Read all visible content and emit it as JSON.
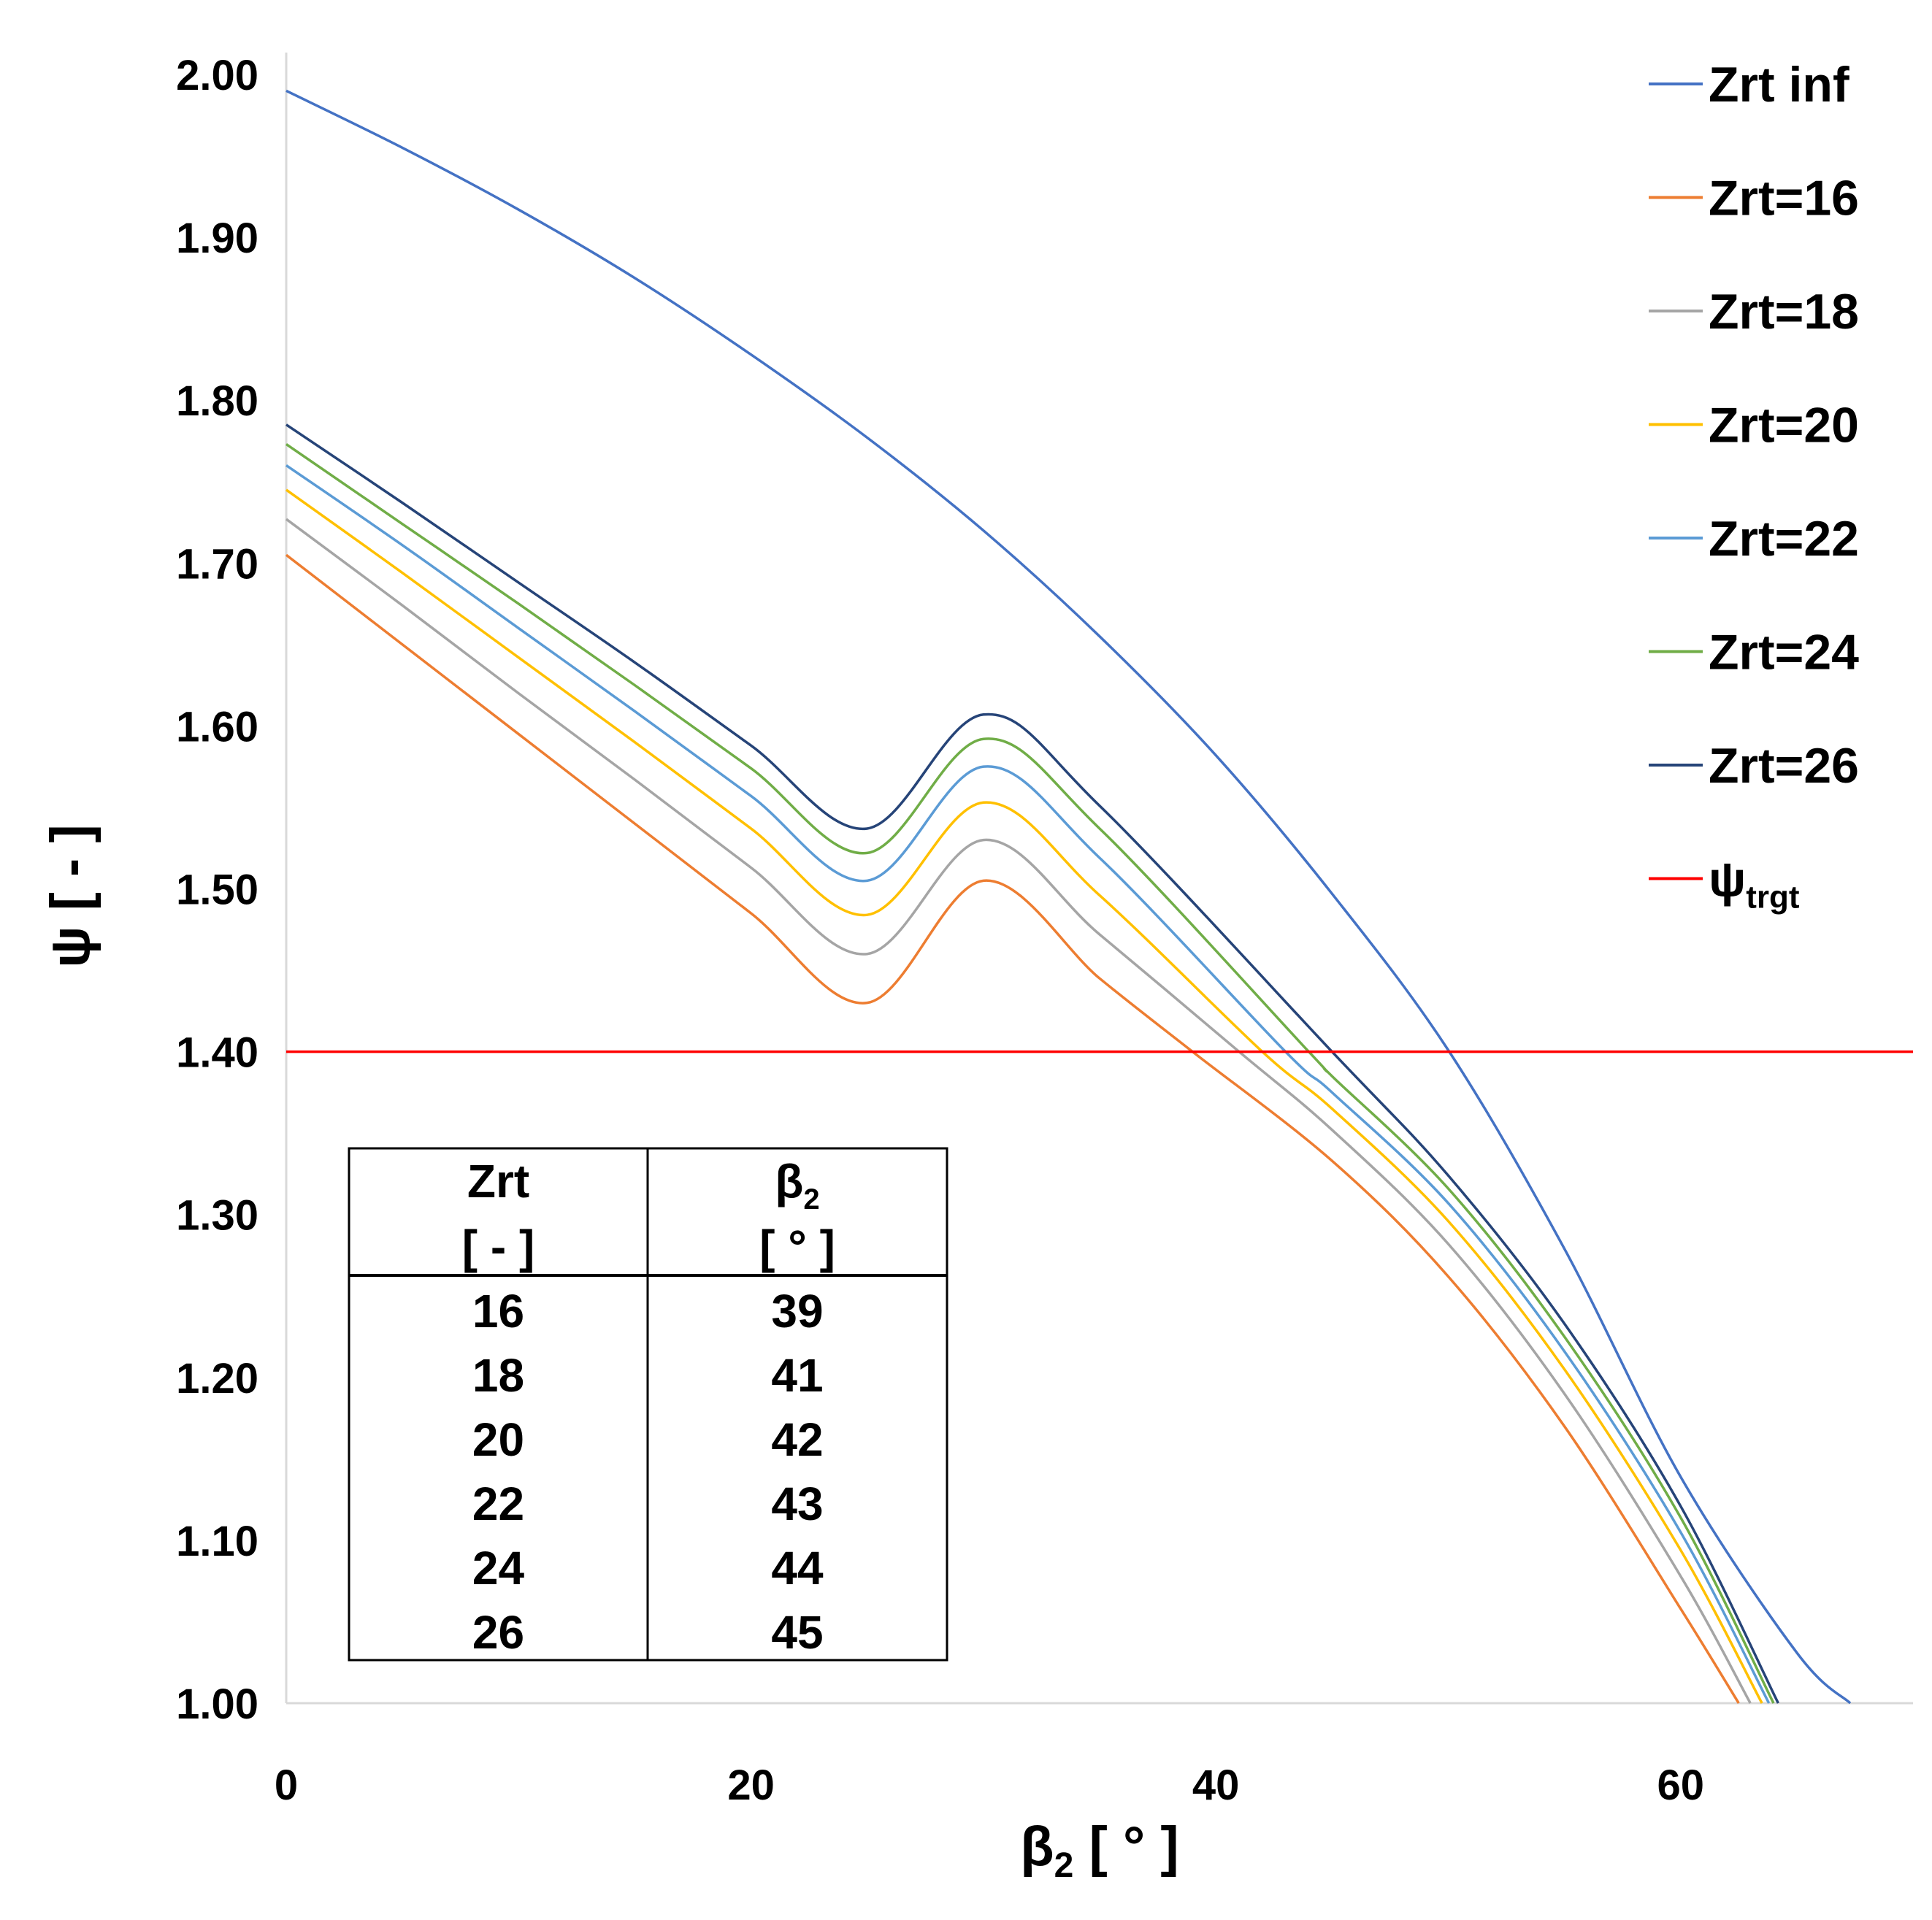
{
  "chart_data": {
    "type": "line",
    "title": "",
    "xlabel": "β",
    "xlabel_sub": "2",
    "xlabel_unit": " [ ° ]",
    "ylabel": "ψ [ - ]",
    "xlim": [
      0,
      70
    ],
    "ylim": [
      1.0,
      2.0
    ],
    "xticks": [
      0,
      20,
      40,
      60
    ],
    "xtick_labels": [
      "0",
      "20",
      "40",
      "60"
    ],
    "yticks": [
      1.0,
      1.1,
      1.2,
      1.3,
      1.4,
      1.5,
      1.6,
      1.7,
      1.8,
      1.9,
      2.0
    ],
    "ytick_labels": [
      "1.00",
      "1.10",
      "1.20",
      "1.30",
      "1.40",
      "1.50",
      "1.60",
      "1.70",
      "1.80",
      "1.90",
      "2.00"
    ],
    "grid": false,
    "legend_position": "right",
    "series": [
      {
        "name": "Zrt inf",
        "color": "#4472C4",
        "x": [
          0,
          5,
          10,
          15,
          20,
          25,
          30,
          35,
          40,
          45,
          50,
          55,
          60,
          65,
          67.3
        ],
        "y": [
          1.99,
          1.955,
          1.917,
          1.875,
          1.828,
          1.777,
          1.72,
          1.655,
          1.582,
          1.497,
          1.401,
          1.279,
          1.139,
          1.031,
          1.0
        ]
      },
      {
        "name": "Zrt=16",
        "color": "#ED7D31",
        "x": [
          0,
          5,
          10,
          15,
          20,
          25,
          30,
          35,
          39,
          45,
          50,
          55,
          60,
          62.5
        ],
        "y": [
          1.705,
          1.65,
          1.595,
          1.54,
          1.485,
          1.43,
          1.505,
          1.445,
          1.4,
          1.333,
          1.262,
          1.17,
          1.058,
          1.0
        ]
      },
      {
        "name": "Zrt=18",
        "color": "#A5A5A5",
        "x": [
          0,
          5,
          10,
          15,
          20,
          25,
          30,
          35,
          41,
          45,
          50,
          55,
          60,
          63
        ],
        "y": [
          1.727,
          1.674,
          1.62,
          1.567,
          1.513,
          1.46,
          1.53,
          1.472,
          1.4,
          1.352,
          1.282,
          1.19,
          1.078,
          1.0
        ]
      },
      {
        "name": "Zrt=20",
        "color": "#FFC000",
        "x": [
          0,
          5,
          10,
          15,
          20,
          25,
          30,
          35,
          42,
          45,
          50,
          55,
          60,
          63.5
        ],
        "y": [
          1.745,
          1.694,
          1.642,
          1.59,
          1.537,
          1.484,
          1.553,
          1.496,
          1.4,
          1.365,
          1.296,
          1.205,
          1.094,
          1.0
        ]
      },
      {
        "name": "Zrt=22",
        "color": "#5B9BD5",
        "x": [
          0,
          5,
          10,
          15,
          20,
          25,
          30,
          35,
          43,
          45,
          50,
          55,
          60,
          63.8
        ],
        "y": [
          1.76,
          1.711,
          1.66,
          1.609,
          1.557,
          1.505,
          1.575,
          1.519,
          1.4,
          1.375,
          1.307,
          1.216,
          1.105,
          1.0
        ]
      },
      {
        "name": "Zrt=24",
        "color": "#70AD47",
        "x": [
          0,
          5,
          10,
          15,
          20,
          25,
          30,
          35,
          44,
          45,
          50,
          55,
          60,
          64
        ],
        "y": [
          1.773,
          1.724,
          1.675,
          1.625,
          1.574,
          1.522,
          1.592,
          1.537,
          1.4,
          1.385,
          1.316,
          1.225,
          1.114,
          1.0
        ]
      },
      {
        "name": "Zrt=26",
        "color": "#264478",
        "x": [
          0,
          5,
          10,
          15,
          20,
          25,
          30,
          35,
          45,
          50,
          55,
          60,
          64.2
        ],
        "y": [
          1.785,
          1.737,
          1.688,
          1.639,
          1.588,
          1.537,
          1.607,
          1.551,
          1.4,
          1.324,
          1.233,
          1.121,
          1.0
        ]
      },
      {
        "name": "ψ",
        "name_sub": "trgt",
        "color": "#FF0000",
        "x": [
          0,
          70
        ],
        "y": [
          1.4,
          1.4
        ]
      }
    ],
    "inset_table": {
      "headers": [
        {
          "line1": "Zrt",
          "line1_sub": "",
          "line2": "[ - ]"
        },
        {
          "line1": "β",
          "line1_sub": "2",
          "line2": "[ ° ]"
        }
      ],
      "rows": [
        [
          "16",
          "39"
        ],
        [
          "18",
          "41"
        ],
        [
          "20",
          "42"
        ],
        [
          "22",
          "43"
        ],
        [
          "24",
          "44"
        ],
        [
          "26",
          "45"
        ]
      ]
    }
  }
}
